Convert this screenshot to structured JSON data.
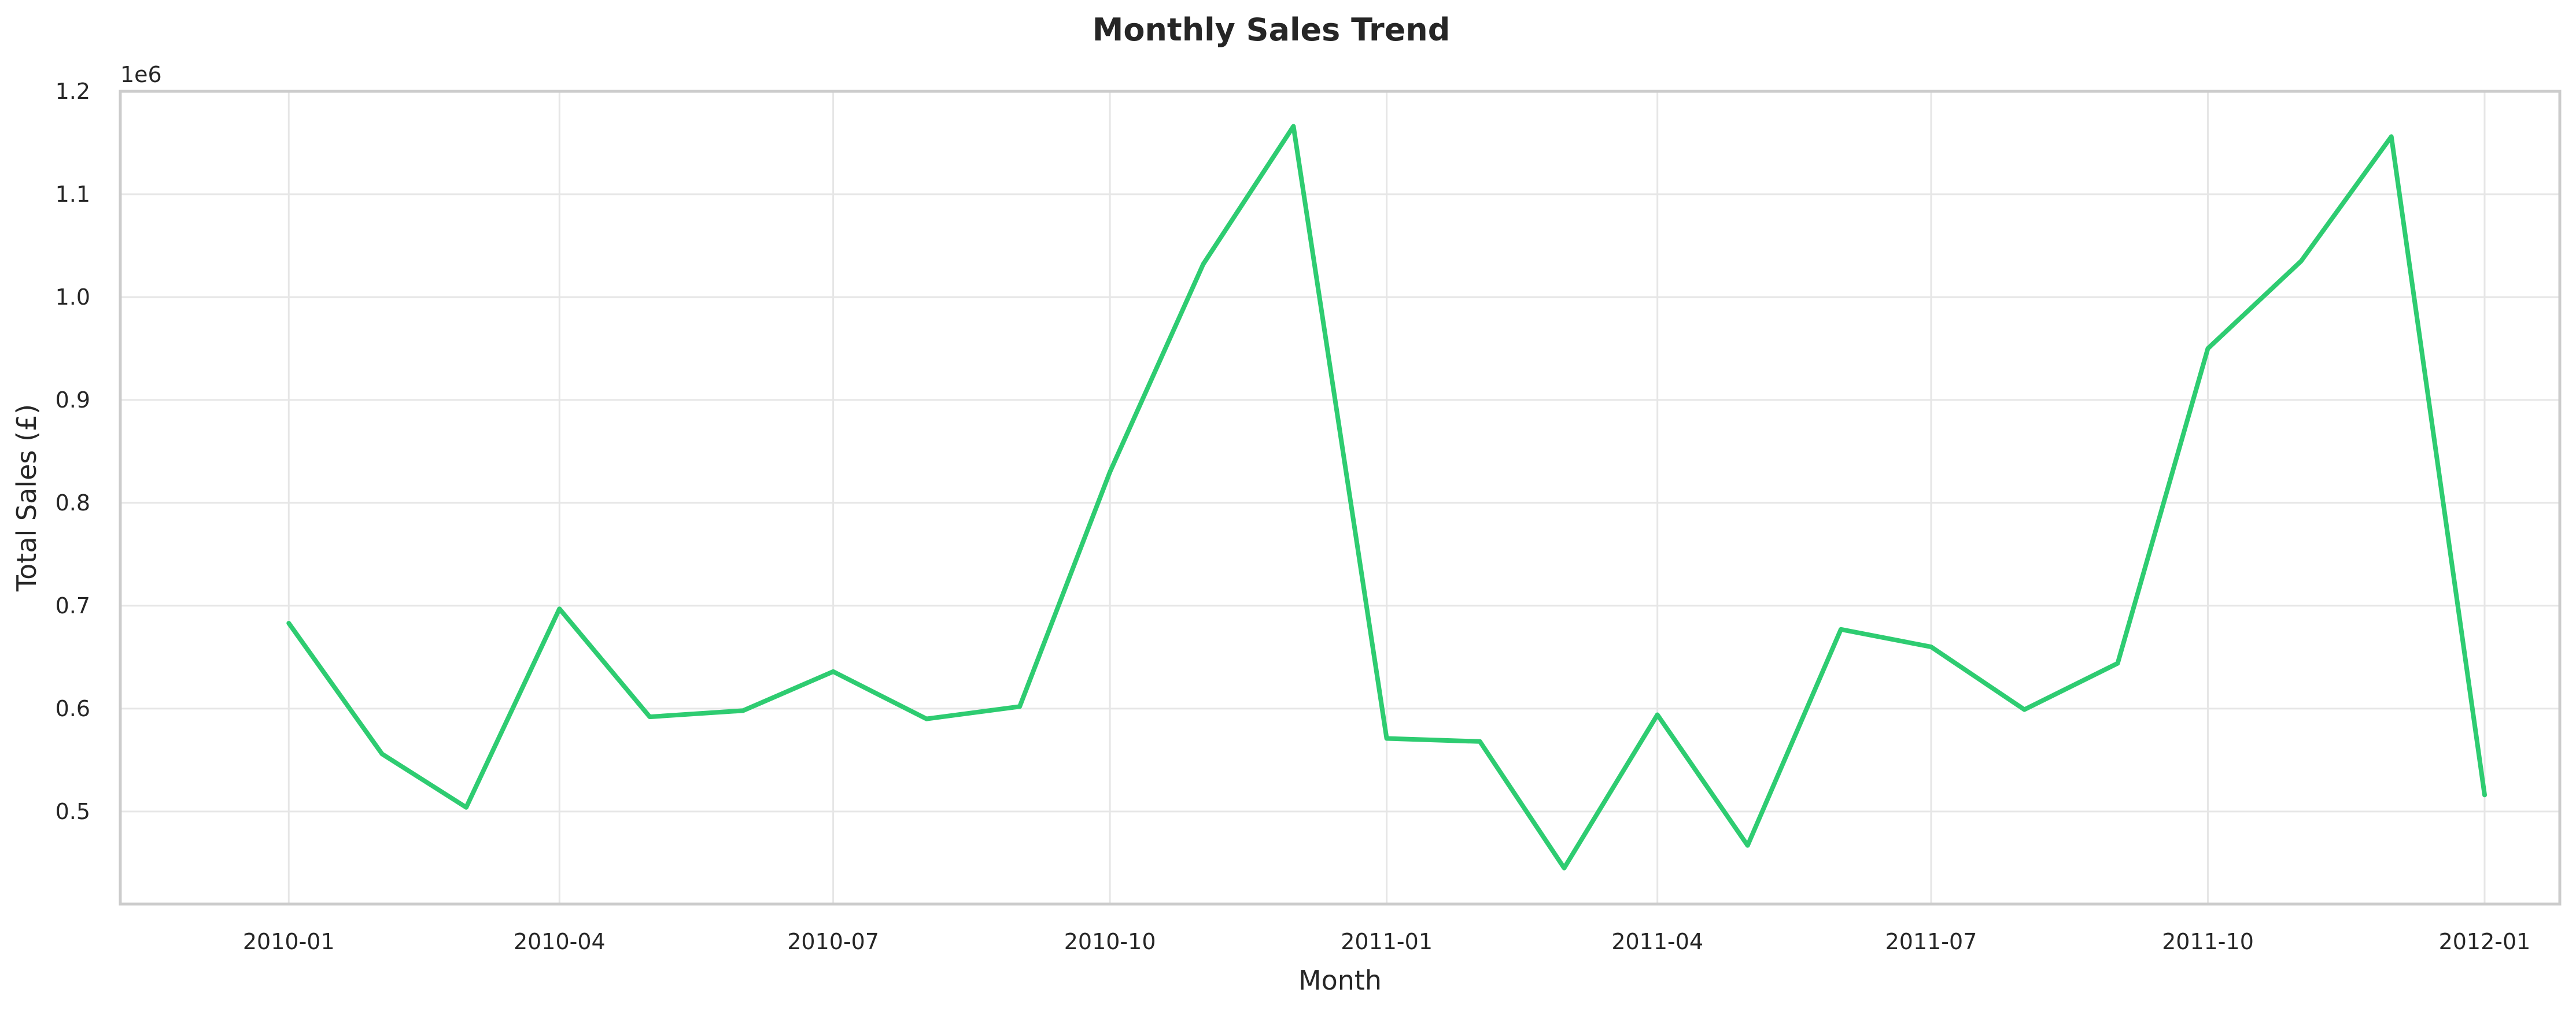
{
  "chart_data": {
    "type": "line",
    "title": "Monthly Sales Trend",
    "xlabel": "Month",
    "ylabel": "Total Sales (£)",
    "y_offset_label": "1e6",
    "y_scale": 1000000,
    "grid": true,
    "color": "#2ecc71",
    "x": [
      "2010-01",
      "2010-02",
      "2010-03",
      "2010-04",
      "2010-05",
      "2010-06",
      "2010-07",
      "2010-08",
      "2010-09",
      "2010-10",
      "2010-11",
      "2010-12",
      "2011-01",
      "2011-02",
      "2011-03",
      "2011-04",
      "2011-05",
      "2011-06",
      "2011-07",
      "2011-08",
      "2011-09",
      "2011-10",
      "2011-11",
      "2011-12",
      "2012-01"
    ],
    "series": [
      {
        "values": [
          683000,
          556000,
          504000,
          697000,
          592000,
          598000,
          636000,
          590000,
          602000,
          830000,
          1032000,
          1166000,
          571000,
          568000,
          445000,
          594000,
          467000,
          677000,
          660000,
          599000,
          644000,
          950000,
          1035000,
          1156000,
          516000
        ]
      }
    ],
    "xticks": [
      "2010-01",
      "2010-04",
      "2010-07",
      "2010-10",
      "2011-01",
      "2011-04",
      "2011-07",
      "2011-10",
      "2012-01"
    ],
    "yticks": [
      0.5,
      0.6,
      0.7,
      0.8,
      0.9,
      1.0,
      1.1,
      1.2
    ],
    "ylim": [
      0.41,
      1.2
    ],
    "xlim": [
      "2009-11-06",
      "2012-01-26"
    ]
  }
}
